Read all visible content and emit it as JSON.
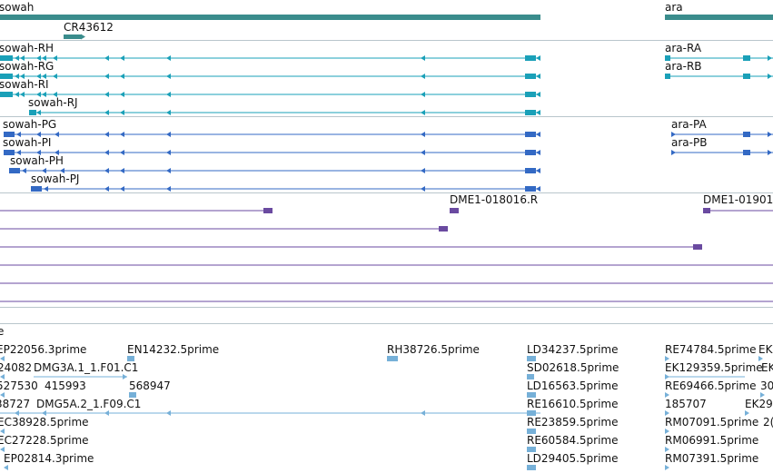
{
  "colors": {
    "gene": "#3a8c8c",
    "ncrna": "#3a8c8c",
    "transcript_teal": "#1aa0b8",
    "transcript_blue": "#3369c4",
    "probe_purple": "#6a4aa0",
    "est_lightblue": "#76b0d8",
    "separator": "#b9c6cc"
  },
  "tracks": {
    "genes": {
      "items": [
        {
          "label": "sowah",
          "name": "gene-sowah"
        },
        {
          "label": "ara",
          "name": "gene-ara"
        },
        {
          "label": "CR43612",
          "name": "gene-cr43612"
        }
      ]
    },
    "transcripts_a": {
      "items": [
        {
          "label": "sowah-RH"
        },
        {
          "label": "sowah-RG"
        },
        {
          "label": "sowah-RI"
        },
        {
          "label": "sowah-RJ"
        },
        {
          "label": "ara-RA"
        },
        {
          "label": "ara-RB"
        }
      ]
    },
    "transcripts_b": {
      "items": [
        {
          "label": "sowah-PG"
        },
        {
          "label": "sowah-PI"
        },
        {
          "label": "sowah-PH"
        },
        {
          "label": "sowah-PJ"
        },
        {
          "label": "ara-PA"
        },
        {
          "label": "ara-PB"
        }
      ]
    },
    "probes": {
      "items": [
        {
          "label": "DME1-018016.R"
        },
        {
          "label": "DME1-01901"
        }
      ]
    },
    "ests": {
      "header": "e",
      "items": [
        {
          "label": "EP22056.3prime"
        },
        {
          "label": "EN14232.5prime"
        },
        {
          "label": "RH38726.5prime"
        },
        {
          "label": "LD34237.5prime"
        },
        {
          "label": "RE74784.5prime"
        },
        {
          "label": "EK"
        },
        {
          "label": "24082"
        },
        {
          "label": "DMG3A.1_1.F01.C1"
        },
        {
          "label": "SD02618.5prime"
        },
        {
          "label": "EK129359.5prime"
        },
        {
          "label": "EK"
        },
        {
          "label": "527530"
        },
        {
          "label": "415993"
        },
        {
          "label": "568947"
        },
        {
          "label": "LD16563.5prime"
        },
        {
          "label": "RE69466.5prime"
        },
        {
          "label": "30"
        },
        {
          "label": "38727"
        },
        {
          "label": "DMG5A.2_1.F09.C1"
        },
        {
          "label": "RE16610.5prime"
        },
        {
          "label": "185707"
        },
        {
          "label": "EK29"
        },
        {
          "label": "EC38928.5prime"
        },
        {
          "label": "RE23859.5prime"
        },
        {
          "label": "RM07091.5prime"
        },
        {
          "label": "2("
        },
        {
          "label": "EC27228.5prime"
        },
        {
          "label": "RE60584.5prime"
        },
        {
          "label": "RM06991.5prime"
        },
        {
          "label": "EP02814.3prime"
        },
        {
          "label": "LD29405.5prime"
        },
        {
          "label": "RM07391.5prime"
        }
      ]
    }
  }
}
